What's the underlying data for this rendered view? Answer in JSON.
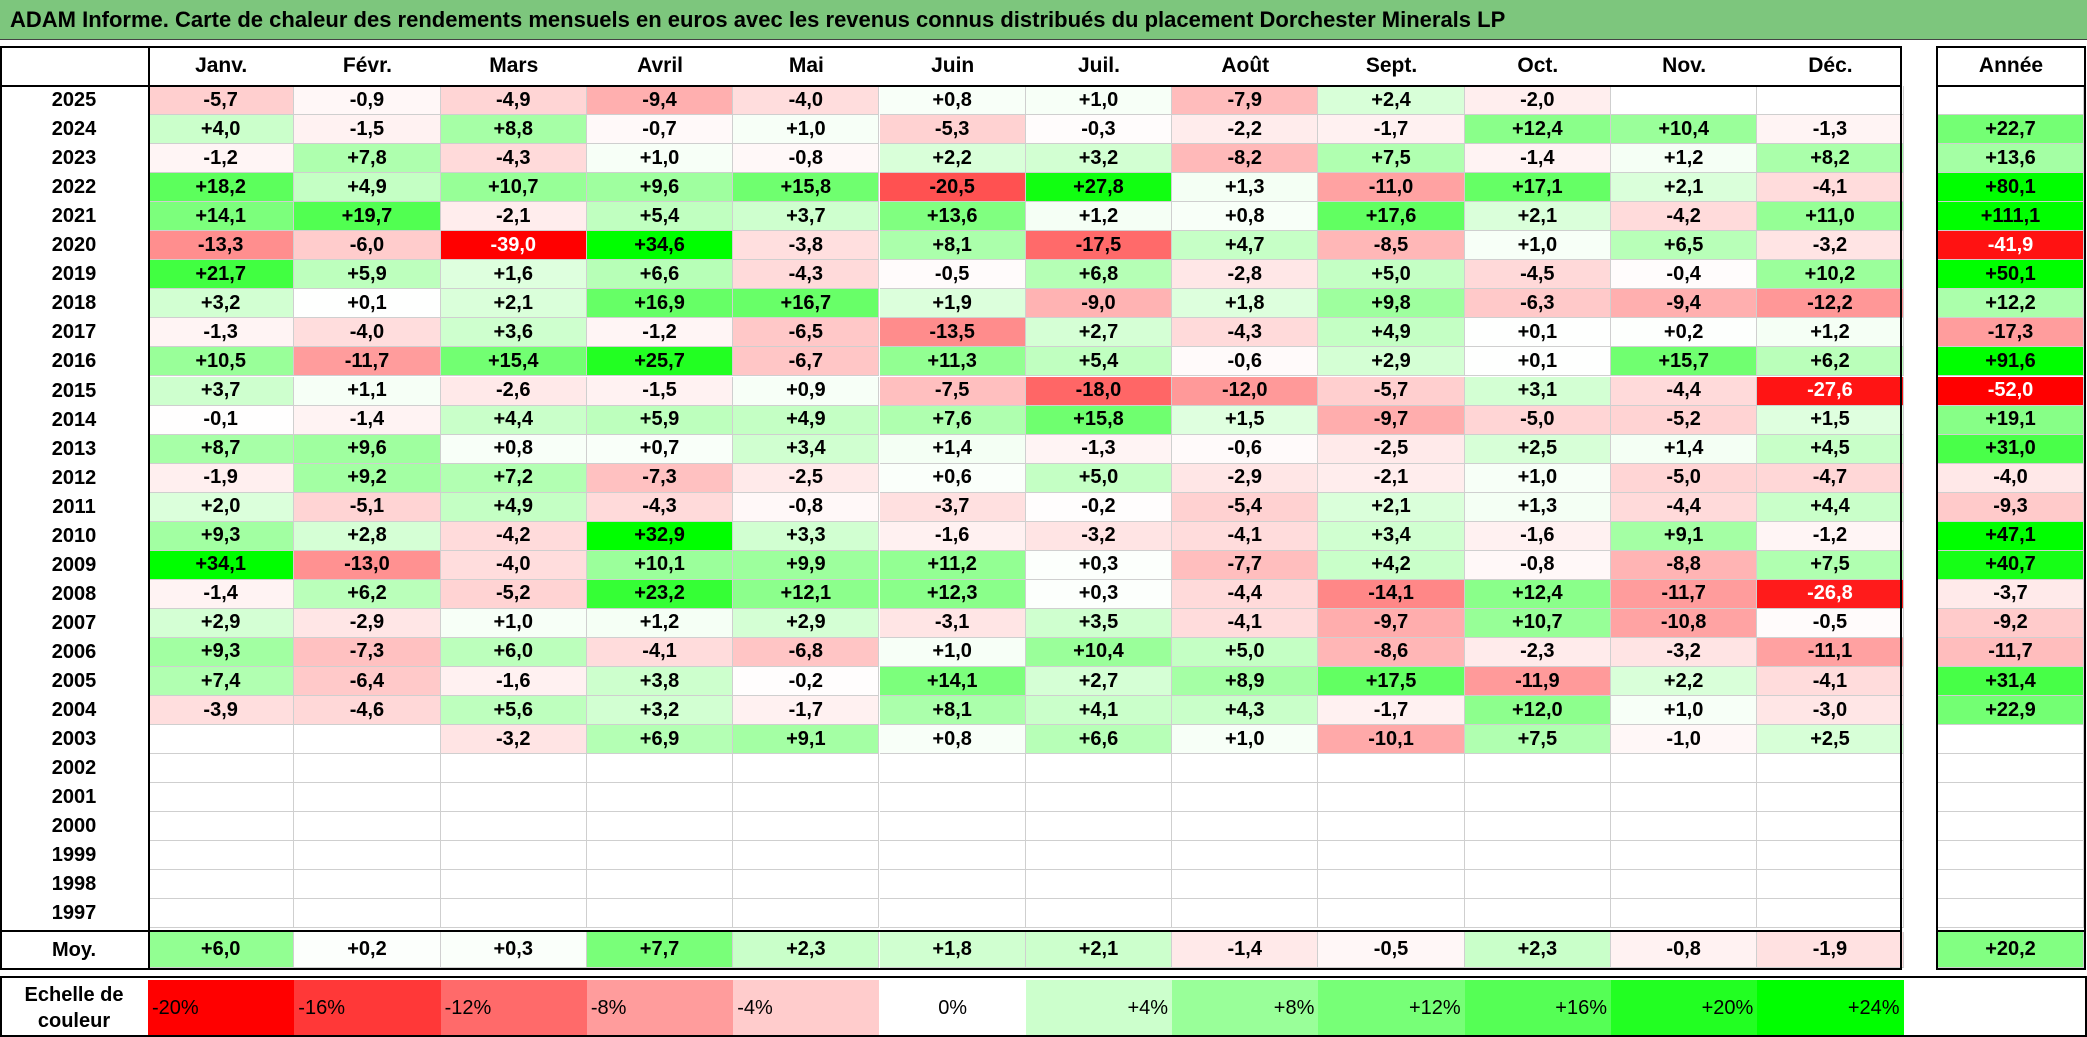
{
  "title": "ADAM Informe. Carte de chaleur des rendements mensuels en euros avec les revenus connus distribués du placement Dorchester Minerals LP",
  "chart_data": {
    "type": "heatmap",
    "title": "ADAM Informe. Carte de chaleur des rendements mensuels en euros avec les revenus connus distribués du placement Dorchester Minerals LP",
    "months": [
      "Janv.",
      "Févr.",
      "Mars",
      "Avril",
      "Mai",
      "Juin",
      "Juil.",
      "Août",
      "Sept.",
      "Oct.",
      "Nov.",
      "Déc."
    ],
    "year_label": "Année",
    "rows": [
      {
        "year": "2025",
        "values": [
          "-5,7",
          "-0,9",
          "-4,9",
          "-9,4",
          "-4,0",
          "+0,8",
          "+1,0",
          "-7,9",
          "+2,4",
          "-2,0",
          "",
          ""
        ],
        "annual": ""
      },
      {
        "year": "2024",
        "values": [
          "+4,0",
          "-1,5",
          "+8,8",
          "-0,7",
          "+1,0",
          "-5,3",
          "-0,3",
          "-2,2",
          "-1,7",
          "+12,4",
          "+10,4",
          "-1,3"
        ],
        "annual": "+22,7"
      },
      {
        "year": "2023",
        "values": [
          "-1,2",
          "+7,8",
          "-4,3",
          "+1,0",
          "-0,8",
          "+2,2",
          "+3,2",
          "-8,2",
          "+7,5",
          "-1,4",
          "+1,2",
          "+8,2"
        ],
        "annual": "+13,6"
      },
      {
        "year": "2022",
        "values": [
          "+18,2",
          "+4,9",
          "+10,7",
          "+9,6",
          "+15,8",
          "-20,5",
          "+27,8",
          "+1,3",
          "-11,0",
          "+17,1",
          "+2,1",
          "-4,1"
        ],
        "annual": "+80,1"
      },
      {
        "year": "2021",
        "values": [
          "+14,1",
          "+19,7",
          "-2,1",
          "+5,4",
          "+3,7",
          "+13,6",
          "+1,2",
          "+0,8",
          "+17,6",
          "+2,1",
          "-4,2",
          "+11,0"
        ],
        "annual": "+111,1"
      },
      {
        "year": "2020",
        "values": [
          "-13,3",
          "-6,0",
          "-39,0",
          "+34,6",
          "-3,8",
          "+8,1",
          "-17,5",
          "+4,7",
          "-8,5",
          "+1,0",
          "+6,5",
          "-3,2"
        ],
        "annual": "-41,9"
      },
      {
        "year": "2019",
        "values": [
          "+21,7",
          "+5,9",
          "+1,6",
          "+6,6",
          "-4,3",
          "-0,5",
          "+6,8",
          "-2,8",
          "+5,0",
          "-4,5",
          "-0,4",
          "+10,2"
        ],
        "annual": "+50,1"
      },
      {
        "year": "2018",
        "values": [
          "+3,2",
          "+0,1",
          "+2,1",
          "+16,9",
          "+16,7",
          "+1,9",
          "-9,0",
          "+1,8",
          "+9,8",
          "-6,3",
          "-9,4",
          "-12,2"
        ],
        "annual": "+12,2"
      },
      {
        "year": "2017",
        "values": [
          "-1,3",
          "-4,0",
          "+3,6",
          "-1,2",
          "-6,5",
          "-13,5",
          "+2,7",
          "-4,3",
          "+4,9",
          "+0,1",
          "+0,2",
          "+1,2"
        ],
        "annual": "-17,3"
      },
      {
        "year": "2016",
        "values": [
          "+10,5",
          "-11,7",
          "+15,4",
          "+25,7",
          "-6,7",
          "+11,3",
          "+5,4",
          "-0,6",
          "+2,9",
          "+0,1",
          "+15,7",
          "+6,2"
        ],
        "annual": "+91,6"
      },
      {
        "year": "2015",
        "values": [
          "+3,7",
          "+1,1",
          "-2,6",
          "-1,5",
          "+0,9",
          "-7,5",
          "-18,0",
          "-12,0",
          "-5,7",
          "+3,1",
          "-4,4",
          "-27,6"
        ],
        "annual": "-52,0"
      },
      {
        "year": "2014",
        "values": [
          "-0,1",
          "-1,4",
          "+4,4",
          "+5,9",
          "+4,9",
          "+7,6",
          "+15,8",
          "+1,5",
          "-9,7",
          "-5,0",
          "-5,2",
          "+1,5"
        ],
        "annual": "+19,1"
      },
      {
        "year": "2013",
        "values": [
          "+8,7",
          "+9,6",
          "+0,8",
          "+0,7",
          "+3,4",
          "+1,4",
          "-1,3",
          "-0,6",
          "-2,5",
          "+2,5",
          "+1,4",
          "+4,5"
        ],
        "annual": "+31,0"
      },
      {
        "year": "2012",
        "values": [
          "-1,9",
          "+9,2",
          "+7,2",
          "-7,3",
          "-2,5",
          "+0,6",
          "+5,0",
          "-2,9",
          "-2,1",
          "+1,0",
          "-5,0",
          "-4,7"
        ],
        "annual": "-4,0"
      },
      {
        "year": "2011",
        "values": [
          "+2,0",
          "-5,1",
          "+4,9",
          "-4,3",
          "-0,8",
          "-3,7",
          "-0,2",
          "-5,4",
          "+2,1",
          "+1,3",
          "-4,4",
          "+4,4"
        ],
        "annual": "-9,3"
      },
      {
        "year": "2010",
        "values": [
          "+9,3",
          "+2,8",
          "-4,2",
          "+32,9",
          "+3,3",
          "-1,6",
          "-3,2",
          "-4,1",
          "+3,4",
          "-1,6",
          "+9,1",
          "-1,2"
        ],
        "annual": "+47,1"
      },
      {
        "year": "2009",
        "values": [
          "+34,1",
          "-13,0",
          "-4,0",
          "+10,1",
          "+9,9",
          "+11,2",
          "+0,3",
          "-7,7",
          "+4,2",
          "-0,8",
          "-8,8",
          "+7,5"
        ],
        "annual": "+40,7"
      },
      {
        "year": "2008",
        "values": [
          "-1,4",
          "+6,2",
          "-5,2",
          "+23,2",
          "+12,1",
          "+12,3",
          "+0,3",
          "-4,4",
          "-14,1",
          "+12,4",
          "-11,7",
          "-26,8"
        ],
        "annual": "-3,7"
      },
      {
        "year": "2007",
        "values": [
          "+2,9",
          "-2,9",
          "+1,0",
          "+1,2",
          "+2,9",
          "-3,1",
          "+3,5",
          "-4,1",
          "-9,7",
          "+10,7",
          "-10,8",
          "-0,5"
        ],
        "annual": "-9,2"
      },
      {
        "year": "2006",
        "values": [
          "+9,3",
          "-7,3",
          "+6,0",
          "-4,1",
          "-6,8",
          "+1,0",
          "+10,4",
          "+5,0",
          "-8,6",
          "-2,3",
          "-3,2",
          "-11,1"
        ],
        "annual": "-11,7"
      },
      {
        "year": "2005",
        "values": [
          "+7,4",
          "-6,4",
          "-1,6",
          "+3,8",
          "-0,2",
          "+14,1",
          "+2,7",
          "+8,9",
          "+17,5",
          "-11,9",
          "+2,2",
          "-4,1"
        ],
        "annual": "+31,4"
      },
      {
        "year": "2004",
        "values": [
          "-3,9",
          "-4,6",
          "+5,6",
          "+3,2",
          "-1,7",
          "+8,1",
          "+4,1",
          "+4,3",
          "-1,7",
          "+12,0",
          "+1,0",
          "-3,0"
        ],
        "annual": "+22,9"
      },
      {
        "year": "2003",
        "values": [
          "",
          "",
          "-3,2",
          "+6,9",
          "+9,1",
          "+0,8",
          "+6,6",
          "+1,0",
          "-10,1",
          "+7,5",
          "-1,0",
          "+2,5"
        ],
        "annual": ""
      },
      {
        "year": "2002",
        "values": [
          "",
          "",
          "",
          "",
          "",
          "",
          "",
          "",
          "",
          "",
          "",
          ""
        ],
        "annual": ""
      },
      {
        "year": "2001",
        "values": [
          "",
          "",
          "",
          "",
          "",
          "",
          "",
          "",
          "",
          "",
          "",
          ""
        ],
        "annual": ""
      },
      {
        "year": "2000",
        "values": [
          "",
          "",
          "",
          "",
          "",
          "",
          "",
          "",
          "",
          "",
          "",
          ""
        ],
        "annual": ""
      },
      {
        "year": "1999",
        "values": [
          "",
          "",
          "",
          "",
          "",
          "",
          "",
          "",
          "",
          "",
          "",
          ""
        ],
        "annual": ""
      },
      {
        "year": "1998",
        "values": [
          "",
          "",
          "",
          "",
          "",
          "",
          "",
          "",
          "",
          "",
          "",
          ""
        ],
        "annual": ""
      },
      {
        "year": "1997",
        "values": [
          "",
          "",
          "",
          "",
          "",
          "",
          "",
          "",
          "",
          "",
          "",
          ""
        ],
        "annual": ""
      }
    ],
    "average_row": {
      "label": "Moy.",
      "values": [
        "+6,0",
        "+0,2",
        "+0,3",
        "+7,7",
        "+2,3",
        "+1,8",
        "+2,1",
        "-1,4",
        "-0,5",
        "+2,3",
        "-0,8",
        "-1,9"
      ],
      "annual": "+20,2"
    },
    "color_scale": {
      "label": "Echelle de couleur",
      "steps": [
        "-20%",
        "-16%",
        "-12%",
        "-8%",
        "-4%",
        "0%",
        "+4%",
        "+8%",
        "+12%",
        "+16%",
        "+20%",
        "+24%"
      ],
      "colors": [
        "#ff0000",
        "#ff3838",
        "#ff6a6a",
        "#ff9c9c",
        "#ffcccc",
        "#ffffff",
        "#ccffcc",
        "#99ff99",
        "#77ff77",
        "#55ff55",
        "#22ff22",
        "#00ff00"
      ]
    }
  }
}
